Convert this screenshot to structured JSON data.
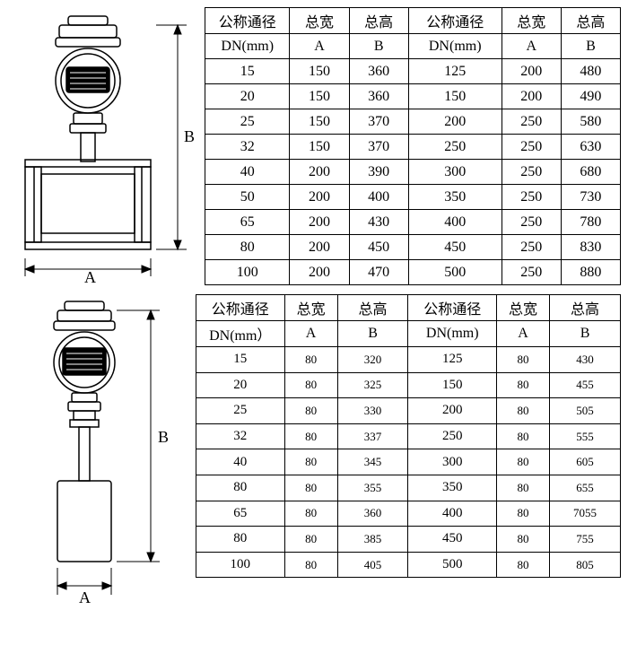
{
  "labels": {
    "dn_cn": "公称通径",
    "dn_unit": "DN(mm)",
    "dn_unit_full": "DN(mm）",
    "w_cn": "总宽",
    "h_cn": "总高",
    "A": "A",
    "B": "B"
  },
  "diagram": {
    "stroke": "#000000",
    "fill": "#ffffff",
    "dim_A": "A",
    "dim_B": "B"
  },
  "table1": {
    "border_color": "#000000",
    "rows": [
      {
        "dn": "15",
        "a": "150",
        "b": "360",
        "dn2": "125",
        "a2": "200",
        "b2": "480"
      },
      {
        "dn": "20",
        "a": "150",
        "b": "360",
        "dn2": "150",
        "a2": "200",
        "b2": "490"
      },
      {
        "dn": "25",
        "a": "150",
        "b": "370",
        "dn2": "200",
        "a2": "250",
        "b2": "580"
      },
      {
        "dn": "32",
        "a": "150",
        "b": "370",
        "dn2": "250",
        "a2": "250",
        "b2": "630"
      },
      {
        "dn": "40",
        "a": "200",
        "b": "390",
        "dn2": "300",
        "a2": "250",
        "b2": "680"
      },
      {
        "dn": "50",
        "a": "200",
        "b": "400",
        "dn2": "350",
        "a2": "250",
        "b2": "730"
      },
      {
        "dn": "65",
        "a": "200",
        "b": "430",
        "dn2": "400",
        "a2": "250",
        "b2": "780"
      },
      {
        "dn": "80",
        "a": "200",
        "b": "450",
        "dn2": "450",
        "a2": "250",
        "b2": "830"
      },
      {
        "dn": "100",
        "a": "200",
        "b": "470",
        "dn2": "500",
        "a2": "250",
        "b2": "880"
      }
    ]
  },
  "table2": {
    "border_color": "#000000",
    "rows": [
      {
        "dn": "15",
        "a": "80",
        "b": "320",
        "dn2": "125",
        "a2": "80",
        "b2": "430"
      },
      {
        "dn": "20",
        "a": "80",
        "b": "325",
        "dn2": "150",
        "a2": "80",
        "b2": "455"
      },
      {
        "dn": "25",
        "a": "80",
        "b": "330",
        "dn2": "200",
        "a2": "80",
        "b2": "505"
      },
      {
        "dn": "32",
        "a": "80",
        "b": "337",
        "dn2": "250",
        "a2": "80",
        "b2": "555"
      },
      {
        "dn": "40",
        "a": "80",
        "b": "345",
        "dn2": "300",
        "a2": "80",
        "b2": "605"
      },
      {
        "dn": "80",
        "a": "80",
        "b": "355",
        "dn2": "350",
        "a2": "80",
        "b2": "655"
      },
      {
        "dn": "65",
        "a": "80",
        "b": "360",
        "dn2": "400",
        "a2": "80",
        "b2": "7055"
      },
      {
        "dn": "80",
        "a": "80",
        "b": "385",
        "dn2": "450",
        "a2": "80",
        "b2": "755"
      },
      {
        "dn": "100",
        "a": "80",
        "b": "405",
        "dn2": "500",
        "a2": "80",
        "b2": "805"
      }
    ]
  }
}
